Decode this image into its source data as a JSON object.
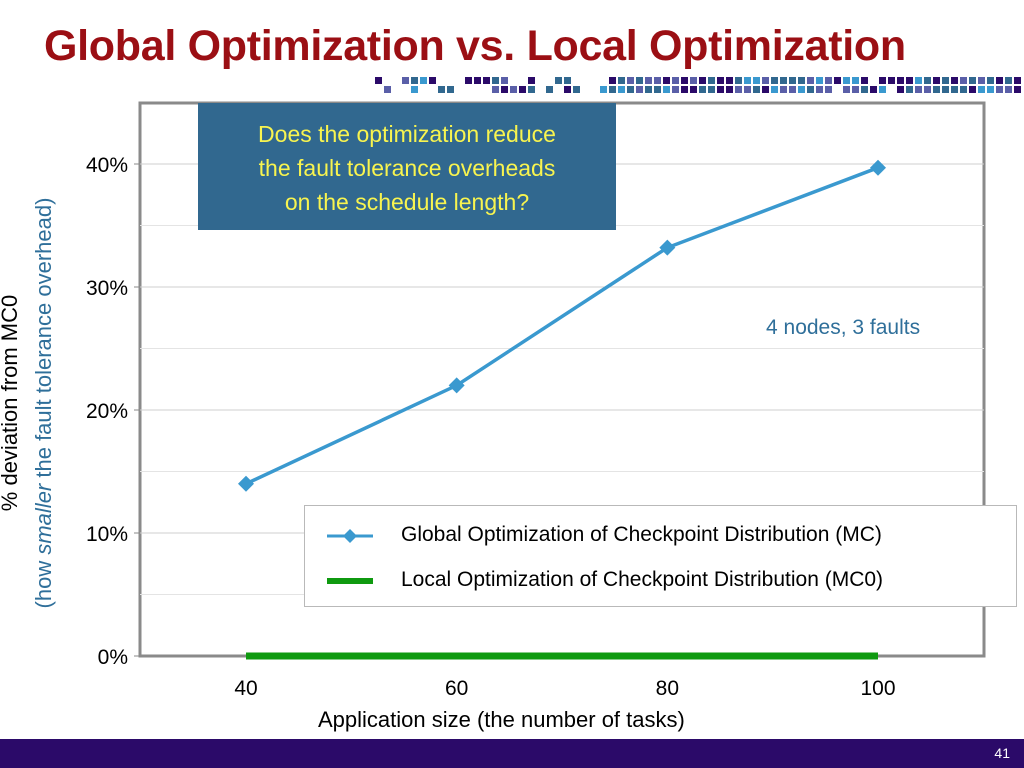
{
  "slide": {
    "title": "Global Optimization vs. Local Optimization",
    "slide_number": "41"
  },
  "colors": {
    "title": "#9b0f14",
    "mc_series": "#3a99cf",
    "mc0_series": "#0f9a10",
    "callout_bg": "#31688f",
    "callout_text": "#f8f44f",
    "annotation": "#2f6f9a",
    "footer": "#2b0a69"
  },
  "callout": {
    "lines": [
      "Does the optimization reduce",
      "the fault tolerance overheads",
      "on the schedule length?"
    ]
  },
  "annotation": "4 nodes, 3 faults",
  "y_title": {
    "line1": "% deviation from MC0",
    "line2_before": "(how ",
    "line2_emph": "smaller",
    "line2_after": " the fault tolerance overhead)"
  },
  "chart_data": {
    "type": "line",
    "xlabel": "Application size (the number of tasks)",
    "ylabel": "% deviation from MC0 (how smaller the fault tolerance overhead)",
    "x": [
      40,
      60,
      80,
      100
    ],
    "x_tick_labels": [
      "40",
      "60",
      "80",
      "100"
    ],
    "y_tick_labels": [
      "0%",
      "10%",
      "20%",
      "30%",
      "40%"
    ],
    "ylim": [
      0,
      40
    ],
    "series": [
      {
        "name": "Global Optimization of Checkpoint Distribution (MC)",
        "values": [
          14,
          22,
          33.2,
          39.7
        ],
        "marker": "diamond"
      },
      {
        "name": "Local Optimization of Checkpoint Distribution (MC0)",
        "values": [
          0,
          0,
          0,
          0
        ],
        "marker": "none"
      }
    ],
    "grid": true,
    "legend_position": "lower-right"
  }
}
